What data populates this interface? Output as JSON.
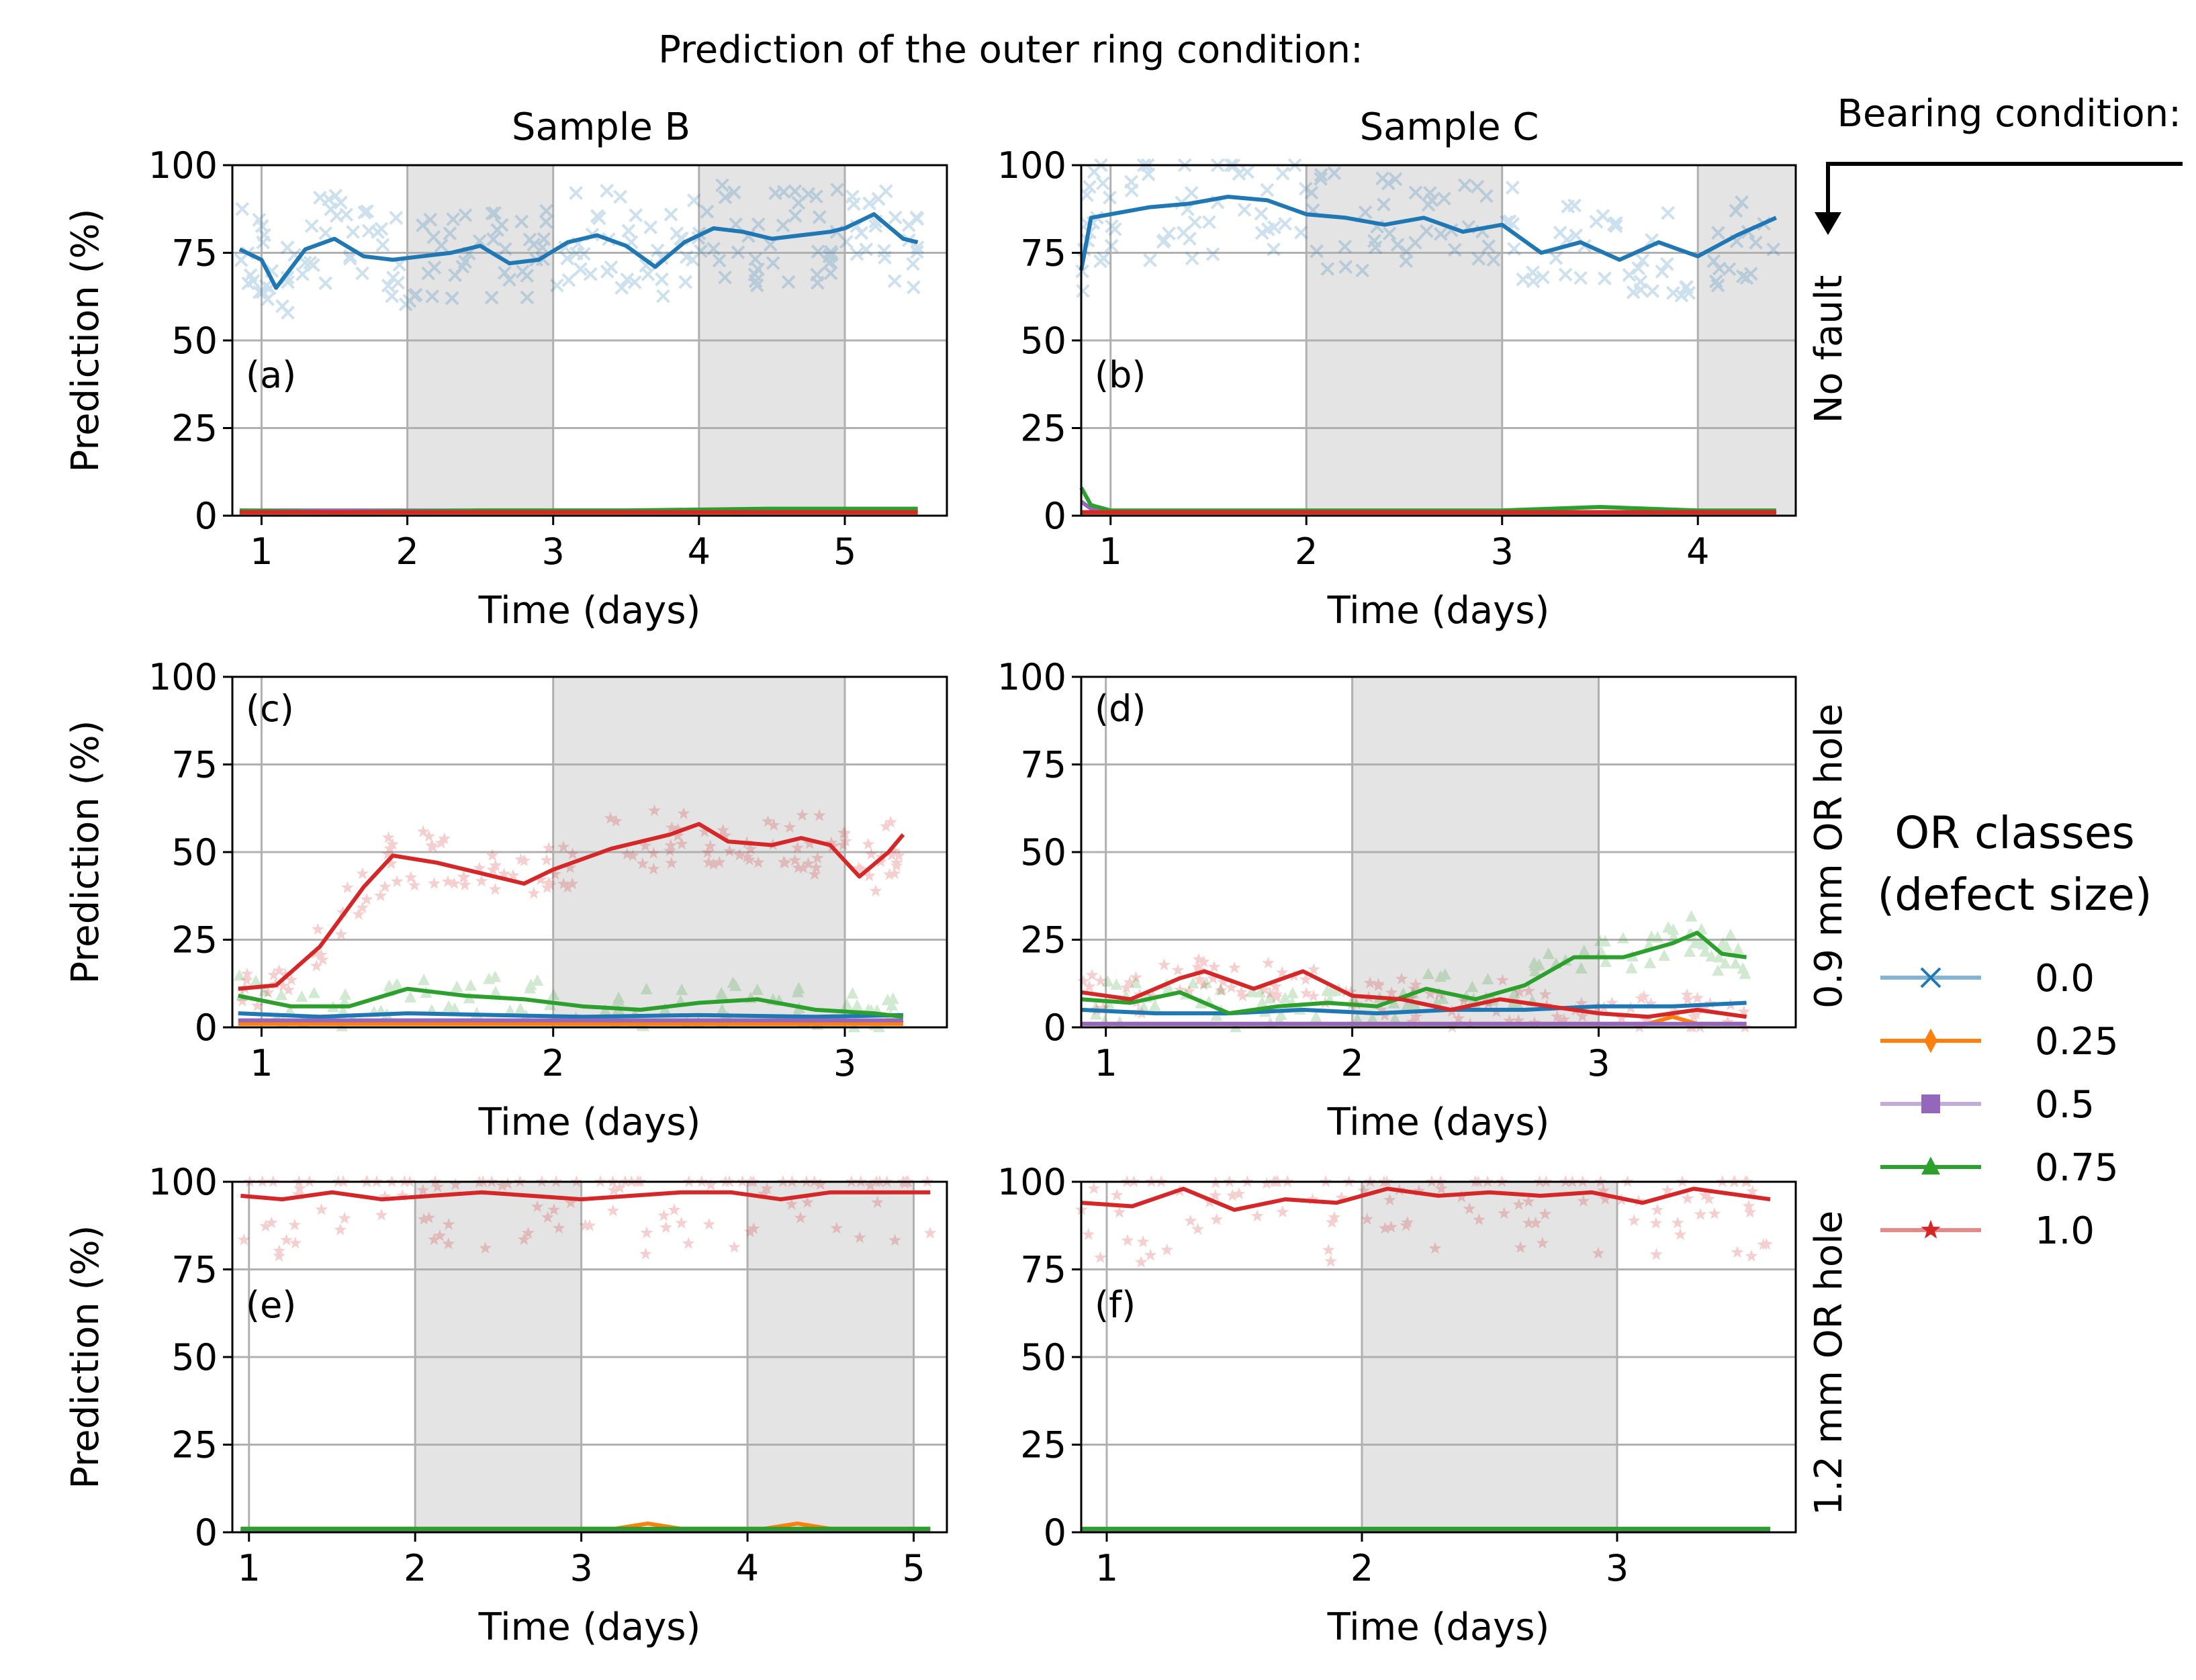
{
  "figure": {
    "title": "Prediction of the outer ring condition:",
    "column_titles": [
      "Sample B",
      "Sample C"
    ],
    "bearing_condition_label": "Bearing condition:",
    "row_labels": [
      "No fault",
      "0.9 mm OR hole",
      "1.2 mm OR hole"
    ]
  },
  "legend": {
    "title_line1": "OR classes",
    "title_line2": "(defect size)",
    "entries": [
      {
        "label": "0.0",
        "color": "#1f77b4",
        "marker": "x"
      },
      {
        "label": "0.25",
        "color": "#ff7f0e",
        "marker": "diamond"
      },
      {
        "label": "0.5",
        "color": "#9467bd",
        "marker": "square"
      },
      {
        "label": "0.75",
        "color": "#2ca02c",
        "marker": "triangle"
      },
      {
        "label": "1.0",
        "color": "#d62728",
        "marker": "star"
      }
    ]
  },
  "colors": {
    "c0": "#1f77b4",
    "c025": "#ff7f0e",
    "c05": "#9467bd",
    "c075": "#2ca02c",
    "c1": "#d62728",
    "shade": "#e4e4e4",
    "grid": "#b0b0b0"
  },
  "chart_data": [
    {
      "type": "line",
      "panel": "(a)",
      "title": "Sample B",
      "xlabel": "Time (days)",
      "ylabel": "Prediction (%)",
      "xlim": [
        0.8,
        5.7
      ],
      "ylim": [
        0,
        100
      ],
      "xticks": [
        1,
        2,
        3,
        4,
        5
      ],
      "yticks": [
        0,
        25,
        50,
        75,
        100
      ],
      "shaded": [
        [
          2,
          3
        ],
        [
          4,
          5
        ]
      ],
      "series": [
        {
          "name": "0.0",
          "x": [
            0.85,
            1.0,
            1.1,
            1.3,
            1.5,
            1.7,
            1.9,
            2.1,
            2.3,
            2.5,
            2.7,
            2.9,
            3.1,
            3.3,
            3.5,
            3.7,
            3.9,
            4.1,
            4.3,
            4.5,
            4.7,
            4.9,
            5.0,
            5.2,
            5.4,
            5.5
          ],
          "values": [
            76,
            73,
            65,
            76,
            79,
            74,
            73,
            74,
            75,
            77,
            72,
            73,
            78,
            80,
            77,
            71,
            78,
            82,
            81,
            79,
            80,
            81,
            82,
            86,
            79,
            78
          ]
        },
        {
          "name": "0.25",
          "x": [
            0.85,
            5.5
          ],
          "values": [
            0.5,
            0.5
          ]
        },
        {
          "name": "0.5",
          "x": [
            0.85,
            5.5
          ],
          "values": [
            1.5,
            1.5
          ]
        },
        {
          "name": "0.75",
          "x": [
            0.85,
            1.5,
            2.5,
            3.5,
            4.5,
            5.5
          ],
          "values": [
            1.5,
            1.0,
            1.5,
            1.5,
            2.0,
            2.0
          ]
        },
        {
          "name": "1.0",
          "x": [
            0.85,
            5.5
          ],
          "values": [
            1.0,
            1.0
          ]
        }
      ]
    },
    {
      "type": "line",
      "panel": "(b)",
      "title": "Sample C",
      "xlabel": "Time (days)",
      "ylabel": "",
      "xlim": [
        0.85,
        4.5
      ],
      "ylim": [
        0,
        100
      ],
      "xticks": [
        1,
        2,
        3,
        4
      ],
      "yticks": [
        0,
        25,
        50,
        75,
        100
      ],
      "shaded": [
        [
          2,
          3
        ],
        [
          4,
          4.5
        ]
      ],
      "series": [
        {
          "name": "0.0",
          "x": [
            0.85,
            0.9,
            1.0,
            1.2,
            1.4,
            1.6,
            1.8,
            2.0,
            2.2,
            2.4,
            2.6,
            2.8,
            3.0,
            3.2,
            3.4,
            3.6,
            3.8,
            4.0,
            4.2,
            4.4
          ],
          "values": [
            70,
            85,
            86,
            88,
            89,
            91,
            90,
            86,
            85,
            83,
            85,
            81,
            83,
            75,
            78,
            73,
            78,
            74,
            80,
            85
          ]
        },
        {
          "name": "0.25",
          "x": [
            0.85,
            4.4
          ],
          "values": [
            0.5,
            0.5
          ]
        },
        {
          "name": "0.5",
          "x": [
            0.85,
            0.9,
            1.0,
            4.4
          ],
          "values": [
            4.0,
            2.0,
            1.0,
            1.0
          ]
        },
        {
          "name": "0.75",
          "x": [
            0.85,
            0.9,
            1.0,
            2.0,
            3.0,
            3.5,
            4.0,
            4.4
          ],
          "values": [
            8.0,
            3.0,
            1.5,
            1.5,
            1.5,
            2.5,
            1.5,
            1.5
          ]
        },
        {
          "name": "1.0",
          "x": [
            0.85,
            4.4
          ],
          "values": [
            1.0,
            1.0
          ]
        }
      ]
    },
    {
      "type": "line",
      "panel": "(c)",
      "title": "",
      "xlabel": "Time (days)",
      "ylabel": "Prediction (%)",
      "xlim": [
        0.9,
        3.35
      ],
      "ylim": [
        0,
        100
      ],
      "xticks": [
        1,
        2,
        3
      ],
      "yticks": [
        0,
        25,
        50,
        75,
        100
      ],
      "shaded": [
        [
          2,
          3
        ]
      ],
      "series": [
        {
          "name": "0.0",
          "x": [
            0.92,
            1.2,
            1.5,
            1.8,
            2.1,
            2.5,
            2.9,
            3.2
          ],
          "values": [
            4.0,
            3.0,
            4.0,
            3.5,
            3.0,
            3.5,
            3.0,
            3.5
          ]
        },
        {
          "name": "0.25",
          "x": [
            0.92,
            3.2
          ],
          "values": [
            1.0,
            1.0
          ]
        },
        {
          "name": "0.5",
          "x": [
            0.92,
            3.2
          ],
          "values": [
            2.0,
            2.0
          ]
        },
        {
          "name": "0.75",
          "x": [
            0.92,
            1.1,
            1.3,
            1.5,
            1.7,
            1.9,
            2.1,
            2.3,
            2.5,
            2.7,
            2.9,
            3.1,
            3.2
          ],
          "values": [
            9.0,
            6.0,
            6.0,
            11.0,
            9.0,
            8.0,
            6.0,
            5.0,
            7.0,
            8.0,
            5.0,
            4.0,
            3.0
          ]
        },
        {
          "name": "1.0",
          "x": [
            0.92,
            1.05,
            1.2,
            1.35,
            1.45,
            1.6,
            1.75,
            1.9,
            2.0,
            2.2,
            2.4,
            2.5,
            2.6,
            2.75,
            2.85,
            2.95,
            3.05,
            3.15,
            3.2
          ],
          "values": [
            11,
            12,
            23,
            40,
            49,
            47,
            44,
            41,
            45,
            51,
            55,
            58,
            53,
            52,
            54,
            52,
            43,
            50,
            55
          ]
        }
      ]
    },
    {
      "type": "line",
      "panel": "(d)",
      "title": "",
      "xlabel": "Time (days)",
      "ylabel": "",
      "xlim": [
        0.9,
        3.8
      ],
      "ylim": [
        0,
        100
      ],
      "xticks": [
        1,
        2,
        3
      ],
      "yticks": [
        0,
        25,
        50,
        75,
        100
      ],
      "shaded": [
        [
          2,
          3
        ]
      ],
      "series": [
        {
          "name": "0.0",
          "x": [
            0.9,
            1.2,
            1.5,
            1.8,
            2.1,
            2.4,
            2.7,
            3.0,
            3.3,
            3.6
          ],
          "values": [
            5,
            4,
            4,
            5,
            4,
            5,
            5,
            6,
            6,
            7
          ]
        },
        {
          "name": "0.25",
          "x": [
            0.9,
            3.2,
            3.3,
            3.4,
            3.6
          ],
          "values": [
            1.0,
            1.0,
            3.0,
            1.0,
            1.0
          ]
        },
        {
          "name": "0.5",
          "x": [
            0.9,
            3.6
          ],
          "values": [
            1.0,
            1.0
          ]
        },
        {
          "name": "0.75",
          "x": [
            0.9,
            1.1,
            1.3,
            1.5,
            1.7,
            1.9,
            2.1,
            2.3,
            2.5,
            2.7,
            2.9,
            3.1,
            3.3,
            3.4,
            3.5,
            3.6
          ],
          "values": [
            8,
            7,
            10,
            4,
            6,
            7,
            6,
            11,
            8,
            12,
            20,
            20,
            24,
            27,
            21,
            20
          ]
        },
        {
          "name": "1.0",
          "x": [
            0.9,
            1.1,
            1.3,
            1.4,
            1.6,
            1.8,
            2.0,
            2.2,
            2.4,
            2.6,
            2.8,
            3.0,
            3.2,
            3.4,
            3.6
          ],
          "values": [
            10,
            8,
            14,
            16,
            11,
            16,
            9,
            8,
            5,
            8,
            6,
            4,
            3,
            5,
            3
          ]
        }
      ]
    },
    {
      "type": "line",
      "panel": "(e)",
      "title": "",
      "xlabel": "Time (days)",
      "ylabel": "Prediction (%)",
      "xlim": [
        0.9,
        5.2
      ],
      "ylim": [
        0,
        100
      ],
      "xticks": [
        1,
        2,
        3,
        4,
        5
      ],
      "yticks": [
        0,
        25,
        50,
        75,
        100
      ],
      "shaded": [
        [
          2,
          3
        ],
        [
          4,
          5
        ]
      ],
      "series": [
        {
          "name": "0.0",
          "x": [
            0.95,
            5.1
          ],
          "values": [
            0.3,
            0.3
          ]
        },
        {
          "name": "0.25",
          "x": [
            0.95,
            3.2,
            3.4,
            3.6,
            4.1,
            4.3,
            4.5,
            5.1
          ],
          "values": [
            1.0,
            1.0,
            2.5,
            1.0,
            1.0,
            2.5,
            1.0,
            1.0
          ]
        },
        {
          "name": "0.5",
          "x": [
            0.95,
            5.1
          ],
          "values": [
            0.5,
            0.5
          ]
        },
        {
          "name": "0.75",
          "x": [
            0.95,
            5.1
          ],
          "values": [
            1.0,
            1.0
          ]
        },
        {
          "name": "1.0",
          "x": [
            0.95,
            1.2,
            1.5,
            1.8,
            2.1,
            2.4,
            2.7,
            3.0,
            3.3,
            3.6,
            3.9,
            4.2,
            4.5,
            4.8,
            5.1
          ],
          "values": [
            96,
            95,
            97,
            95,
            96,
            97,
            96,
            95,
            96,
            97,
            97,
            95,
            97,
            97,
            97
          ]
        }
      ]
    },
    {
      "type": "line",
      "panel": "(f)",
      "title": "",
      "xlabel": "Time (days)",
      "ylabel": "",
      "xlim": [
        0.9,
        3.7
      ],
      "ylim": [
        0,
        100
      ],
      "xticks": [
        1,
        2,
        3
      ],
      "yticks": [
        0,
        25,
        50,
        75,
        100
      ],
      "shaded": [
        [
          2,
          3
        ]
      ],
      "series": [
        {
          "name": "0.0",
          "x": [
            0.9,
            3.6
          ],
          "values": [
            0.3,
            0.3
          ]
        },
        {
          "name": "0.25",
          "x": [
            0.9,
            3.6
          ],
          "values": [
            0.8,
            0.8
          ]
        },
        {
          "name": "0.5",
          "x": [
            0.9,
            3.6
          ],
          "values": [
            0.5,
            0.5
          ]
        },
        {
          "name": "0.75",
          "x": [
            0.9,
            3.6
          ],
          "values": [
            1.0,
            1.0
          ]
        },
        {
          "name": "1.0",
          "x": [
            0.9,
            1.1,
            1.3,
            1.5,
            1.7,
            1.9,
            2.1,
            2.3,
            2.5,
            2.7,
            2.9,
            3.1,
            3.3,
            3.5,
            3.6
          ],
          "values": [
            94,
            93,
            98,
            92,
            95,
            94,
            98,
            96,
            97,
            96,
            97,
            94,
            98,
            96,
            95
          ]
        }
      ]
    }
  ]
}
